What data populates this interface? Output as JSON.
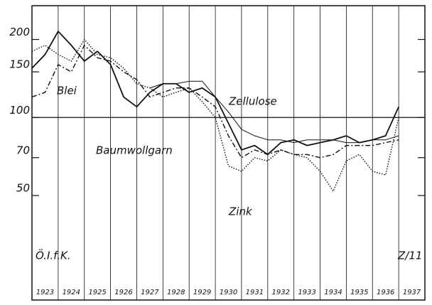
{
  "chart_data": {
    "type": "line",
    "log_y": true,
    "categories": [
      "1923",
      "1924",
      "1925",
      "1926",
      "1927",
      "1928",
      "1929",
      "1930",
      "1931",
      "1932",
      "1933",
      "1934",
      "1935",
      "1936",
      "1937"
    ],
    "x": [
      1923,
      1923.5,
      1924,
      1924.5,
      1925,
      1925.5,
      1926,
      1926.5,
      1927,
      1927.5,
      1928,
      1928.5,
      1929,
      1929.5,
      1930,
      1930.5,
      1931,
      1931.5,
      1932,
      1932.5,
      1933,
      1933.5,
      1934,
      1934.5,
      1935,
      1935.5,
      1936,
      1936.5,
      1937
    ],
    "xlim": [
      1923,
      1938
    ],
    "ylim": [
      23,
      270
    ],
    "yticks": [
      50,
      70,
      100,
      150,
      200
    ],
    "reference_line": 100,
    "color": "#111111",
    "series": [
      {
        "name": "Baumwollgarn",
        "style": "solid",
        "values": [
          155,
          175,
          215,
          190,
          165,
          180,
          160,
          120,
          110,
          125,
          135,
          135,
          125,
          130,
          120,
          95,
          75,
          78,
          72,
          80,
          82,
          78,
          80,
          82,
          85,
          80,
          82,
          85,
          110
        ]
      },
      {
        "name": "Zellulose",
        "style": "thin",
        "values": [
          null,
          null,
          null,
          null,
          null,
          null,
          null,
          null,
          null,
          130,
          135,
          135,
          138,
          138,
          120,
          105,
          90,
          85,
          82,
          82,
          80,
          82,
          82,
          82,
          80,
          80,
          82,
          82,
          85
        ]
      },
      {
        "name": "Blei",
        "style": "dashdot",
        "values": [
          120,
          125,
          160,
          150,
          190,
          170,
          165,
          150,
          140,
          120,
          125,
          130,
          130,
          120,
          110,
          85,
          70,
          75,
          72,
          75,
          72,
          72,
          70,
          72,
          78,
          78,
          78,
          80,
          82
        ]
      },
      {
        "name": "Zink",
        "style": "dotted",
        "values": [
          180,
          190,
          175,
          165,
          200,
          175,
          170,
          155,
          135,
          130,
          120,
          125,
          130,
          115,
          100,
          65,
          62,
          70,
          68,
          75,
          72,
          70,
          62,
          52,
          68,
          72,
          62,
          60,
          100
        ]
      }
    ],
    "annotations": [
      "Ö.I.f.K.",
      "Z/11"
    ]
  }
}
